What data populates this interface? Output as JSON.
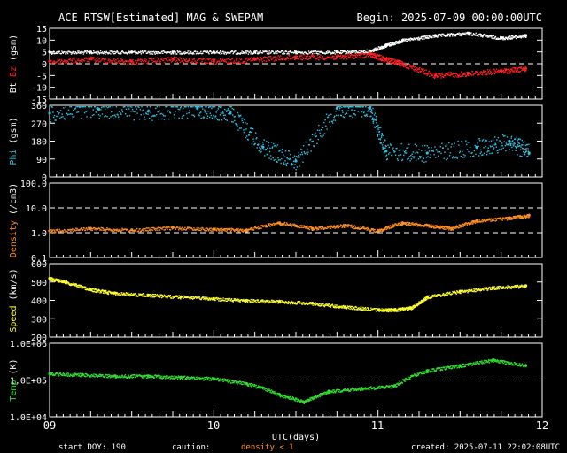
{
  "header": {
    "title": "ACE RTSW[Estimated] MAG & SWEPAM",
    "begin_label": "Begin: 2025-07-09 00:00:00UTC"
  },
  "footer": {
    "start_doy": "start DOY: 190",
    "caution_label": "caution:",
    "caution_note": "density < 1",
    "created": "created: 2025-07-11 22:02:08UTC"
  },
  "colors": {
    "bt": "#ffffff",
    "bz": "#ff2020",
    "phi": "#30c0e0",
    "density": "#ff9020",
    "speed": "#ffff30",
    "temp": "#30e030",
    "caution": "#ff9020",
    "axis": "#ffffff"
  },
  "chart_data": {
    "type": "scatter",
    "x_axis": {
      "label": "UTC(days)",
      "range": [
        9,
        12
      ],
      "ticks": [
        "09",
        "10",
        "11",
        "12"
      ]
    },
    "panels": [
      {
        "id": "mag",
        "ylabel_parts": [
          "Bt",
          "Bz",
          "(gsm)"
        ],
        "ylim": [
          -15,
          15
        ],
        "tick_values": [
          15,
          10,
          5,
          0,
          -5,
          -10,
          -15
        ],
        "tick_labels": [
          "15",
          "10",
          "5",
          "0",
          "-5",
          "-10",
          "-15"
        ],
        "dashed_at": [
          0
        ],
        "series": [
          {
            "name": "Bt",
            "color": "#ffffff",
            "x": [
              9.0,
              9.25,
              9.5,
              9.75,
              10.0,
              10.25,
              10.5,
              10.75,
              10.95,
              11.05,
              11.15,
              11.35,
              11.55,
              11.75,
              11.9
            ],
            "y": [
              5,
              5,
              5,
              5,
              5,
              5,
              5,
              5,
              5.5,
              8,
              10,
              12,
              13,
              11,
              12
            ]
          },
          {
            "name": "Bz",
            "color": "#ff2020",
            "x": [
              9.0,
              9.25,
              9.5,
              9.75,
              10.0,
              10.25,
              10.5,
              10.75,
              10.95,
              11.05,
              11.15,
              11.35,
              11.55,
              11.75,
              11.9
            ],
            "y": [
              1,
              2,
              1,
              2,
              1,
              2,
              3,
              3,
              4,
              2,
              0,
              -5,
              -4,
              -3,
              -2
            ]
          }
        ]
      },
      {
        "id": "phi",
        "ylabel_parts": [
          "Phi",
          "(gsm)"
        ],
        "ylim": [
          0,
          360
        ],
        "tick_values": [
          360,
          270,
          180,
          90,
          0
        ],
        "tick_labels": [
          "360",
          "270",
          "180",
          "90",
          "0"
        ],
        "series": [
          {
            "name": "Phi",
            "color": "#30c0e0",
            "x": [
              9.0,
              9.3,
              9.6,
              9.9,
              10.1,
              10.3,
              10.5,
              10.75,
              10.95,
              11.05,
              11.3,
              11.6,
              11.8,
              11.92
            ],
            "y": [
              320,
              340,
              330,
              345,
              320,
              150,
              80,
              345,
              345,
              130,
              120,
              150,
              180,
              120
            ]
          }
        ]
      },
      {
        "id": "density",
        "ylabel_parts": [
          "Density",
          "(/cm3)"
        ],
        "scale": "log",
        "ylim": [
          0.1,
          100
        ],
        "tick_values": [
          100,
          10,
          1,
          0.1
        ],
        "tick_labels": [
          "100.0",
          "10.0",
          "1.0",
          "0.1"
        ],
        "dashed_at": [
          10,
          1
        ],
        "series": [
          {
            "name": "Density",
            "color": "#ff9020",
            "x": [
              9.0,
              9.25,
              9.5,
              9.75,
              10.0,
              10.2,
              10.4,
              10.6,
              10.8,
              11.0,
              11.15,
              11.3,
              11.45,
              11.6,
              11.8,
              11.92
            ],
            "y": [
              1.2,
              1.5,
              1.3,
              1.6,
              1.4,
              1.3,
              2.5,
              1.5,
              2.0,
              1.2,
              2.5,
              2.0,
              1.5,
              3.0,
              4.0,
              5.0
            ]
          }
        ]
      },
      {
        "id": "speed",
        "ylabel_parts": [
          "Speed",
          "(km/s)"
        ],
        "ylim": [
          200,
          600
        ],
        "tick_values": [
          600,
          500,
          400,
          300,
          200
        ],
        "tick_labels": [
          "600",
          "500",
          "400",
          "300",
          "200"
        ],
        "series": [
          {
            "name": "Speed",
            "color": "#ffff30",
            "x": [
              9.0,
              9.1,
              9.25,
              9.4,
              9.6,
              9.8,
              10.0,
              10.2,
              10.4,
              10.6,
              10.8,
              11.0,
              11.1,
              11.2,
              11.3,
              11.5,
              11.7,
              11.9
            ],
            "y": [
              520,
              500,
              460,
              440,
              430,
              420,
              410,
              400,
              395,
              385,
              365,
              350,
              350,
              360,
              420,
              450,
              470,
              480
            ]
          }
        ]
      },
      {
        "id": "temp",
        "ylabel_parts": [
          "Temp",
          "(K)"
        ],
        "scale": "log",
        "ylim": [
          10000,
          1000000
        ],
        "tick_values": [
          1000000,
          100000,
          10000
        ],
        "tick_labels": [
          "1.0E+06",
          "1.0E+05",
          "1.0E+04"
        ],
        "dashed_at": [
          100000
        ],
        "series": [
          {
            "name": "Temp",
            "color": "#30e030",
            "x": [
              9.0,
              9.2,
              9.4,
              9.6,
              9.8,
              10.0,
              10.2,
              10.4,
              10.55,
              10.7,
              10.9,
              11.1,
              11.3,
              11.5,
              11.7,
              11.9
            ],
            "y": [
              150000,
              140000,
              130000,
              130000,
              120000,
              110000,
              80000,
              40000,
              25000,
              50000,
              60000,
              70000,
              180000,
              250000,
              350000,
              250000
            ]
          }
        ]
      }
    ]
  }
}
